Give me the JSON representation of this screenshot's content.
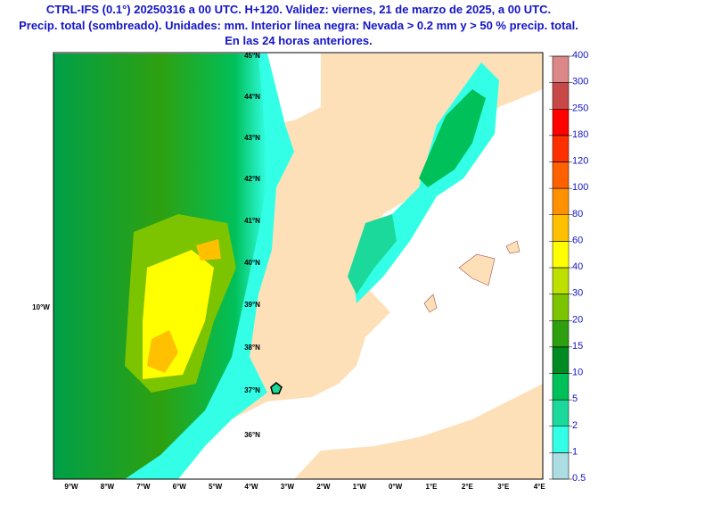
{
  "header": {
    "lines": [
      "CTRL-IFS (0.1°) 20250316 a 00 UTC. H+120. Validez: viernes, 21 de marzo de 2025, a 00 UTC.",
      "Precip. total (sombreado). Unidades: mm. Interior línea negra: Nevada > 0.2 mm y > 50 % precip. total.",
      "En las 24 horas anteriores."
    ]
  },
  "map": {
    "lat_labels": [
      "45°N",
      "44°N",
      "43°N",
      "42°N",
      "41°N",
      "40°N",
      "39°N",
      "38°N",
      "37°N",
      "36°N"
    ],
    "lon_labels": [
      "9°W",
      "8°W",
      "7°W",
      "6°W",
      "5°W",
      "4°W",
      "3°W",
      "2°W",
      "1°W",
      "0°W",
      "1°E",
      "2°E",
      "3°E",
      "4°E"
    ],
    "side_label": "10°W"
  },
  "legend": {
    "levels": [
      0.5,
      1,
      2,
      5,
      10,
      15,
      20,
      30,
      40,
      60,
      80,
      100,
      120,
      180,
      250,
      300,
      400
    ],
    "colors": [
      "#abdde3",
      "#33ffe6",
      "#1ad99a",
      "#00c05a",
      "#008a22",
      "#2ea010",
      "#7cc400",
      "#bde000",
      "#ffff00",
      "#ffc000",
      "#ff9100",
      "#ff6000",
      "#ff3000",
      "#ff0000",
      "#c84848",
      "#dc8888",
      "#f2c6c6"
    ]
  }
}
